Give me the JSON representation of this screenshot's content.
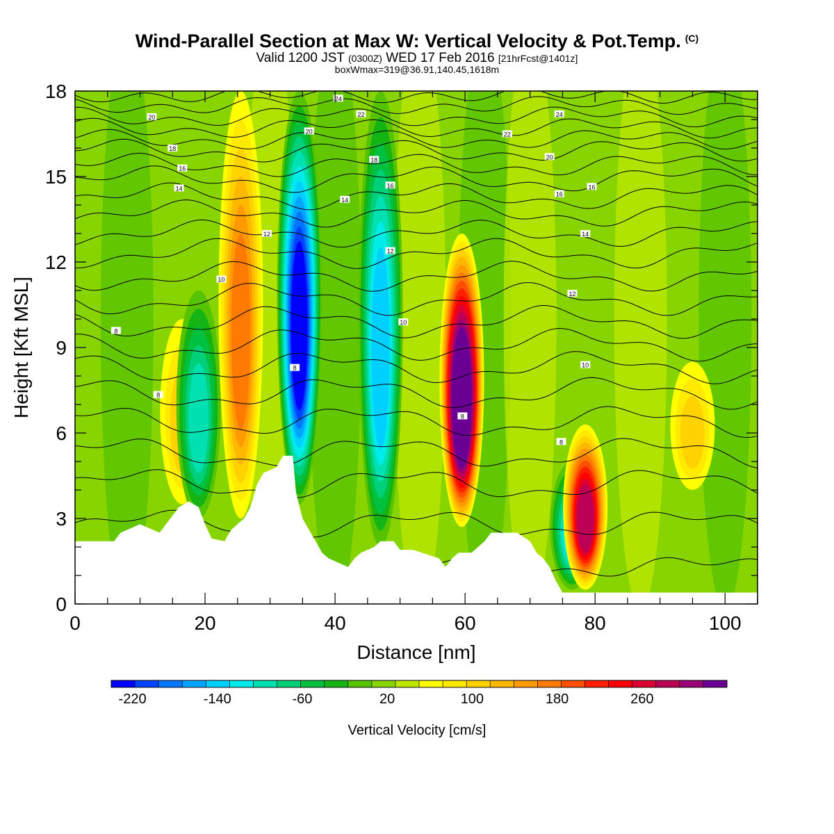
{
  "header": {
    "title": "Wind-Parallel Section at Max W: Vertical Velocity & Pot.Temp.",
    "copyright": "(C)",
    "valid_prefix": "Valid 1200 JST",
    "valid_utc": "(0300Z)",
    "valid_date": "WED 17 Feb 2016",
    "forecast": "[21hrFcst@1401z]",
    "box_info": "boxWmax=319@36.91,140.45,1618m"
  },
  "chart_data": {
    "type": "heatmap",
    "xlabel": "Distance [nm]",
    "ylabel": "Height [Kft MSL]",
    "xlim": [
      0,
      105
    ],
    "ylim": [
      0,
      18
    ],
    "x_ticks": [
      0,
      20,
      40,
      60,
      80,
      100
    ],
    "y_ticks": [
      0,
      3,
      6,
      9,
      12,
      15,
      18
    ],
    "colorbar": {
      "label": "Vertical Velocity [cm/s]",
      "min": -240,
      "max": 340,
      "step": 20,
      "tick_labels": [
        "-220",
        "-140",
        "-60",
        "20",
        "100",
        "180",
        "260"
      ],
      "colors": [
        "#0000ff",
        "#0044ff",
        "#0077ff",
        "#00a5ff",
        "#00d0ff",
        "#00ecea",
        "#00e0b0",
        "#00d07a",
        "#00c040",
        "#14b414",
        "#55c300",
        "#88d400",
        "#bfe800",
        "#ffff00",
        "#ffea00",
        "#ffd200",
        "#ffb800",
        "#ff9a00",
        "#ff7a00",
        "#ff5000",
        "#ff2000",
        "#ff0000",
        "#dd0033",
        "#bb0055",
        "#990077",
        "#6a0093"
      ]
    },
    "vertical_velocity_features": [
      {
        "x": 16.5,
        "y_bottom": 3.5,
        "y_top": 10,
        "value": 60
      },
      {
        "x": 19,
        "y_bottom": 3,
        "y_top": 11,
        "value": -100
      },
      {
        "x": 25.5,
        "y_bottom": 3,
        "y_top": 18,
        "value": 120
      },
      {
        "x": 34.5,
        "y_bottom": 3.5,
        "y_top": 18,
        "value": -220
      },
      {
        "x": 47,
        "y_bottom": 2,
        "y_top": 18,
        "value": -140
      },
      {
        "x": 59.5,
        "y_bottom": 2.7,
        "y_top": 13,
        "value": 319
      },
      {
        "x": 76.5,
        "y_bottom": 0.5,
        "y_top": 5,
        "value": -120
      },
      {
        "x": 78.5,
        "y_bottom": 0.5,
        "y_top": 6.3,
        "value": 220
      },
      {
        "x": 95,
        "y_bottom": 4,
        "y_top": 8.5,
        "value": 70
      }
    ],
    "terrain_heights_kft": [
      [
        0,
        2.2
      ],
      [
        6,
        2.2
      ],
      [
        7,
        2.5
      ],
      [
        10,
        2.8
      ],
      [
        13,
        2.5
      ],
      [
        15,
        3.1
      ],
      [
        16,
        3.4
      ],
      [
        17.5,
        3.6
      ],
      [
        19,
        3.4
      ],
      [
        20,
        2.8
      ],
      [
        21,
        2.3
      ],
      [
        23,
        2.2
      ],
      [
        24,
        2.6
      ],
      [
        26,
        3.0
      ],
      [
        27,
        3.4
      ],
      [
        28,
        4.2
      ],
      [
        29,
        4.6
      ],
      [
        31,
        4.8
      ],
      [
        32,
        5.2
      ],
      [
        33.5,
        5.2
      ],
      [
        34,
        3.9
      ],
      [
        35,
        3.0
      ],
      [
        36,
        2.6
      ],
      [
        37,
        2.2
      ],
      [
        38,
        1.8
      ],
      [
        39,
        1.6
      ],
      [
        42,
        1.3
      ],
      [
        43,
        1.6
      ],
      [
        44,
        1.8
      ],
      [
        46,
        2.0
      ],
      [
        47,
        2.2
      ],
      [
        49,
        2.2
      ],
      [
        50,
        1.9
      ],
      [
        52,
        1.9
      ],
      [
        56,
        1.6
      ],
      [
        57,
        1.3
      ],
      [
        58,
        1.6
      ],
      [
        59,
        1.8
      ],
      [
        61,
        1.8
      ],
      [
        63,
        2.2
      ],
      [
        64,
        2.5
      ],
      [
        68,
        2.5
      ],
      [
        70,
        2.2
      ],
      [
        71,
        1.8
      ],
      [
        72,
        1.6
      ],
      [
        73,
        1.3
      ],
      [
        74,
        0.8
      ],
      [
        75,
        0.4
      ],
      [
        80,
        0.4
      ],
      [
        105,
        0.4
      ]
    ],
    "theta_contours": [
      {
        "label": "8",
        "base": 1.3,
        "amp": 0.25
      },
      {
        "label": "8",
        "base": 2.8,
        "amp": 0.35
      },
      {
        "label": "8",
        "base": 4.2,
        "amp": 0.4
      },
      {
        "label": "8",
        "base": 5.3,
        "amp": 0.4
      },
      {
        "label": "8",
        "base": 6.4,
        "amp": 0.4
      },
      {
        "label": "8",
        "base": 7.4,
        "amp": 0.4
      },
      {
        "label": "8",
        "base": 8.3,
        "amp": 0.4
      },
      {
        "label": "8",
        "base": 9.1,
        "amp": 0.4
      },
      {
        "label": "10",
        "base": 9.9,
        "amp": 0.4
      },
      {
        "label": "10",
        "base": 10.7,
        "amp": 0.4
      },
      {
        "label": "10",
        "base": 11.5,
        "amp": 0.35
      },
      {
        "label": "12",
        "base": 12.3,
        "amp": 0.35
      },
      {
        "label": "12",
        "base": 13.0,
        "amp": 0.3
      },
      {
        "label": "14",
        "base": 13.7,
        "amp": 0.3
      },
      {
        "label": "14",
        "base": 14.3,
        "amp": 0.3
      },
      {
        "label": "16",
        "base": 14.9,
        "amp": 0.3
      },
      {
        "label": "16",
        "base": 15.4,
        "amp": 0.25
      },
      {
        "label": "18",
        "base": 15.9,
        "amp": 0.25
      },
      {
        "label": "18",
        "base": 16.3,
        "amp": 0.2
      },
      {
        "label": "20",
        "base": 16.7,
        "amp": 0.2
      },
      {
        "label": "20",
        "base": 17.1,
        "amp": 0.2
      },
      {
        "label": "22",
        "base": 17.5,
        "amp": 0.15
      },
      {
        "label": "24",
        "base": 17.85,
        "amp": 0.1
      }
    ],
    "contour_labels": [
      {
        "x": 6.3,
        "y": 9.6,
        "text": "8"
      },
      {
        "x": 12.8,
        "y": 7.35,
        "text": "8"
      },
      {
        "x": 33.8,
        "y": 8.3,
        "text": "8"
      },
      {
        "x": 59.6,
        "y": 6.6,
        "text": "8"
      },
      {
        "x": 74.8,
        "y": 5.7,
        "text": "8"
      },
      {
        "x": 22.5,
        "y": 11.4,
        "text": "10"
      },
      {
        "x": 50.5,
        "y": 9.9,
        "text": "10"
      },
      {
        "x": 78.5,
        "y": 8.4,
        "text": "10"
      },
      {
        "x": 29.5,
        "y": 13.0,
        "text": "12"
      },
      {
        "x": 48.5,
        "y": 12.4,
        "text": "12"
      },
      {
        "x": 76.5,
        "y": 10.9,
        "text": "12"
      },
      {
        "x": 16,
        "y": 14.6,
        "text": "14"
      },
      {
        "x": 41.5,
        "y": 14.2,
        "text": "14"
      },
      {
        "x": 78.5,
        "y": 13.0,
        "text": "14"
      },
      {
        "x": 16.5,
        "y": 15.3,
        "text": "16"
      },
      {
        "x": 48.5,
        "y": 14.7,
        "text": "16"
      },
      {
        "x": 74.5,
        "y": 14.4,
        "text": "16"
      },
      {
        "x": 79.5,
        "y": 14.65,
        "text": "16"
      },
      {
        "x": 15,
        "y": 16.0,
        "text": "18"
      },
      {
        "x": 46,
        "y": 15.6,
        "text": "18"
      },
      {
        "x": 11.8,
        "y": 17.1,
        "text": "20"
      },
      {
        "x": 36,
        "y": 16.6,
        "text": "20"
      },
      {
        "x": 73,
        "y": 15.7,
        "text": "20"
      },
      {
        "x": 66.5,
        "y": 16.5,
        "text": "22"
      },
      {
        "x": 44,
        "y": 17.2,
        "text": "22"
      },
      {
        "x": 40.5,
        "y": 17.75,
        "text": "24"
      },
      {
        "x": 74.5,
        "y": 17.2,
        "text": "24"
      }
    ]
  }
}
